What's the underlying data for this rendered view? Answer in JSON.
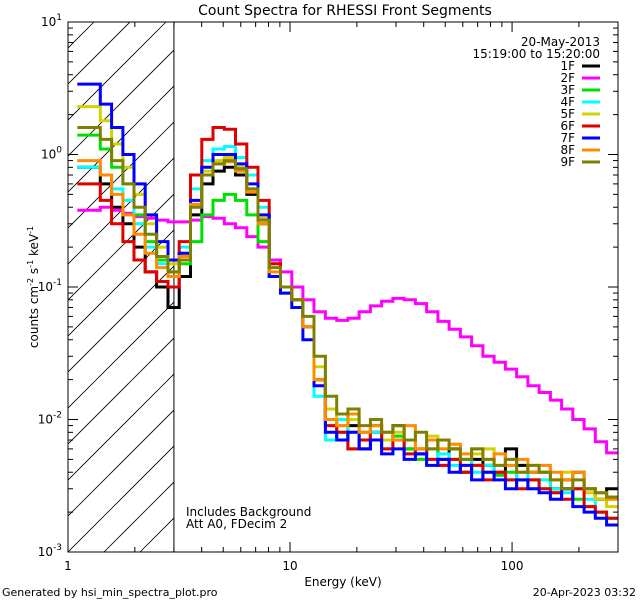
{
  "chart_data": {
    "type": "line",
    "title": "Count Spectra for RHESSI Front Segments",
    "xlabel": "Energy (keV)",
    "ylabel": "counts cm",
    "ylabel_sup1": "-2",
    "ylabel_mid": " s",
    "ylabel_sup2": "-1",
    "ylabel_end": " keV",
    "ylabel_sup3": "-1",
    "x_scale": "log",
    "y_scale": "log",
    "xlim": [
      1,
      300
    ],
    "ylim": [
      0.001,
      10
    ],
    "x_ticks": [
      {
        "value": 1,
        "label": "1"
      },
      {
        "value": 10,
        "label": "10"
      },
      {
        "value": 100,
        "label": "100"
      }
    ],
    "y_ticks": [
      {
        "value": 10,
        "base": "10",
        "exp": "1"
      },
      {
        "value": 1,
        "base": "10",
        "exp": "0"
      },
      {
        "value": 0.1,
        "base": "10",
        "exp": "-1"
      },
      {
        "value": 0.01,
        "base": "10",
        "exp": "-2"
      },
      {
        "value": 0.001,
        "base": "10",
        "exp": "-3"
      }
    ],
    "date": "20-May-2013",
    "time_range": "15:19:00 to 15:20:00",
    "annotations": [
      "Includes Background",
      "Att A0, FDecim 2"
    ],
    "hatched_region_upper_kev": 3,
    "footer_left": "Generated by hsi_min_spectra_plot.pro",
    "footer_right": "20-Apr-2023 03:32",
    "colors": {
      "1F": "#000000",
      "2F": "#ff00ff",
      "3F": "#00e000",
      "4F": "#00ffff",
      "5F": "#d2d200",
      "6F": "#e00000",
      "7F": "#0000ff",
      "8F": "#ff8c00",
      "9F": "#808000"
    },
    "bins": [
      1.17,
      1.32,
      1.48,
      1.67,
      1.87,
      2.1,
      2.36,
      2.66,
      2.99,
      3.36,
      3.78,
      4.24,
      4.77,
      5.36,
      6.02,
      6.77,
      7.6,
      8.54,
      9.6,
      10.8,
      12.1,
      13.6,
      15.3,
      17.2,
      19.3,
      21.7,
      24.4,
      27.4,
      30.8,
      34.6,
      38.9,
      43.7,
      49.1,
      55.2,
      62.0,
      69.7,
      78.3,
      88.0,
      98.9,
      111.1,
      124.9,
      140.3,
      157.7,
      177.2,
      199.1,
      223.7,
      251.4,
      282.5
    ],
    "series": [
      {
        "name": "1F",
        "values": [
          0.8,
          0.8,
          0.6,
          0.4,
          0.3,
          0.2,
          0.13,
          0.1,
          0.07,
          0.12,
          0.35,
          0.6,
          0.75,
          0.8,
          0.7,
          0.5,
          0.3,
          0.12,
          0.1,
          0.08,
          0.05,
          0.02,
          0.01,
          0.007,
          0.009,
          0.006,
          0.008,
          0.007,
          0.009,
          0.006,
          0.0055,
          0.007,
          0.005,
          0.006,
          0.004,
          0.005,
          0.0045,
          0.004,
          0.006,
          0.0045,
          0.004,
          0.004,
          0.003,
          0.0035,
          0.004,
          0.003,
          0.0025,
          0.003
        ]
      },
      {
        "name": "2F",
        "values": [
          0.38,
          0.38,
          0.4,
          0.38,
          0.36,
          0.34,
          0.33,
          0.32,
          0.31,
          0.31,
          0.32,
          0.34,
          0.33,
          0.3,
          0.28,
          0.24,
          0.2,
          0.16,
          0.13,
          0.1,
          0.08,
          0.065,
          0.058,
          0.056,
          0.058,
          0.065,
          0.072,
          0.078,
          0.082,
          0.08,
          0.075,
          0.065,
          0.055,
          0.048,
          0.042,
          0.036,
          0.03,
          0.027,
          0.024,
          0.021,
          0.018,
          0.016,
          0.014,
          0.012,
          0.01,
          0.0085,
          0.0068,
          0.0056
        ]
      },
      {
        "name": "3F",
        "values": [
          1.4,
          1.4,
          1.1,
          0.8,
          0.6,
          0.35,
          0.22,
          0.16,
          0.13,
          0.15,
          0.22,
          0.35,
          0.45,
          0.5,
          0.45,
          0.35,
          0.22,
          0.12,
          0.09,
          0.08,
          0.05,
          0.02,
          0.01,
          0.008,
          0.006,
          0.008,
          0.007,
          0.006,
          0.0075,
          0.006,
          0.005,
          0.006,
          0.0045,
          0.005,
          0.004,
          0.0045,
          0.004,
          0.0038,
          0.004,
          0.0035,
          0.0035,
          0.003,
          0.0028,
          0.003,
          0.0025,
          0.0022,
          0.002,
          0.0018
        ]
      },
      {
        "name": "4F",
        "values": [
          0.8,
          0.8,
          0.7,
          0.55,
          0.45,
          0.3,
          0.2,
          0.15,
          0.12,
          0.2,
          0.55,
          0.9,
          1.1,
          1.15,
          0.95,
          0.7,
          0.4,
          0.15,
          0.1,
          0.08,
          0.05,
          0.015,
          0.007,
          0.01,
          0.008,
          0.007,
          0.008,
          0.006,
          0.007,
          0.0055,
          0.006,
          0.005,
          0.0055,
          0.0045,
          0.005,
          0.004,
          0.0045,
          0.004,
          0.0035,
          0.004,
          0.003,
          0.0035,
          0.003,
          0.0028,
          0.003,
          0.0025,
          0.002,
          0.0018
        ]
      },
      {
        "name": "5F",
        "values": [
          2.3,
          2.3,
          1.8,
          1.2,
          0.8,
          0.5,
          0.3,
          0.2,
          0.15,
          0.18,
          0.45,
          0.75,
          0.9,
          0.95,
          0.8,
          0.55,
          0.33,
          0.15,
          0.1,
          0.08,
          0.05,
          0.025,
          0.012,
          0.009,
          0.01,
          0.008,
          0.009,
          0.007,
          0.008,
          0.007,
          0.006,
          0.0075,
          0.006,
          0.0065,
          0.005,
          0.0055,
          0.006,
          0.0045,
          0.005,
          0.004,
          0.0045,
          0.004,
          0.0035,
          0.004,
          0.003,
          0.0028,
          0.0025,
          0.0022
        ]
      },
      {
        "name": "6F",
        "values": [
          0.6,
          0.6,
          0.45,
          0.3,
          0.22,
          0.16,
          0.13,
          0.11,
          0.1,
          0.22,
          0.7,
          1.3,
          1.6,
          1.55,
          1.2,
          0.8,
          0.45,
          0.15,
          0.1,
          0.08,
          0.05,
          0.02,
          0.009,
          0.008,
          0.006,
          0.007,
          0.009,
          0.006,
          0.007,
          0.0055,
          0.006,
          0.005,
          0.0045,
          0.005,
          0.004,
          0.0045,
          0.0035,
          0.004,
          0.0035,
          0.003,
          0.0035,
          0.003,
          0.0028,
          0.0025,
          0.003,
          0.0022,
          0.002,
          0.0018
        ]
      },
      {
        "name": "7F",
        "values": [
          3.4,
          3.4,
          2.4,
          1.6,
          1.0,
          0.6,
          0.35,
          0.22,
          0.16,
          0.18,
          0.45,
          0.8,
          1.0,
          1.0,
          0.85,
          0.6,
          0.35,
          0.12,
          0.09,
          0.07,
          0.04,
          0.018,
          0.008,
          0.007,
          0.008,
          0.006,
          0.007,
          0.0055,
          0.006,
          0.005,
          0.0055,
          0.0045,
          0.005,
          0.004,
          0.0045,
          0.0035,
          0.004,
          0.0035,
          0.003,
          0.0035,
          0.003,
          0.0028,
          0.0025,
          0.003,
          0.0022,
          0.002,
          0.0018,
          0.0016
        ]
      },
      {
        "name": "8F",
        "values": [
          0.9,
          0.9,
          0.7,
          0.5,
          0.35,
          0.25,
          0.18,
          0.14,
          0.12,
          0.17,
          0.42,
          0.7,
          0.85,
          0.88,
          0.75,
          0.52,
          0.3,
          0.13,
          0.1,
          0.08,
          0.05,
          0.02,
          0.01,
          0.009,
          0.011,
          0.008,
          0.009,
          0.008,
          0.007,
          0.009,
          0.006,
          0.007,
          0.006,
          0.0065,
          0.0055,
          0.006,
          0.005,
          0.0055,
          0.0045,
          0.005,
          0.004,
          0.0045,
          0.004,
          0.0035,
          0.004,
          0.003,
          0.0028,
          0.0025
        ]
      },
      {
        "name": "9F",
        "values": [
          1.6,
          1.6,
          1.3,
          0.9,
          0.6,
          0.4,
          0.25,
          0.17,
          0.13,
          0.16,
          0.4,
          0.7,
          0.85,
          0.9,
          0.78,
          0.55,
          0.32,
          0.14,
          0.1,
          0.08,
          0.06,
          0.03,
          0.015,
          0.011,
          0.012,
          0.009,
          0.01,
          0.008,
          0.009,
          0.007,
          0.008,
          0.006,
          0.007,
          0.006,
          0.005,
          0.006,
          0.005,
          0.0045,
          0.005,
          0.004,
          0.0045,
          0.004,
          0.0035,
          0.003,
          0.0035,
          0.003,
          0.0028,
          0.0026
        ]
      }
    ]
  }
}
